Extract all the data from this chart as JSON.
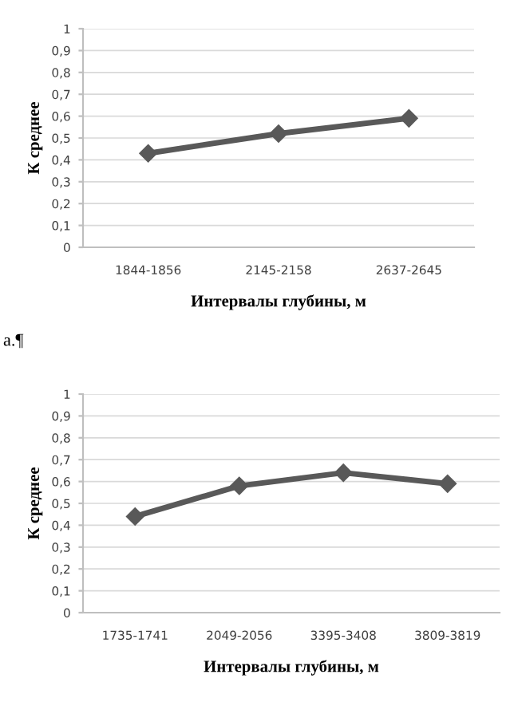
{
  "chart_data": [
    {
      "type": "line",
      "categories": [
        "1844-1856",
        "2145-2158",
        "2637-2645"
      ],
      "series": [
        {
          "color": "#595959",
          "values": [
            0.43,
            0.52,
            0.59
          ]
        }
      ],
      "xlabel": "Интервалы глубины, м",
      "ylabel": "К среднее",
      "ylim": [
        0,
        1
      ],
      "yticks": [
        0,
        {
          "value": 0.1,
          "label": "0,1"
        },
        {
          "value": 0.2,
          "label": "0,2"
        },
        {
          "value": 0.3,
          "label": "0,3"
        },
        {
          "value": 0.4,
          "label": "0,4"
        },
        {
          "value": 0.5,
          "label": "0,5"
        },
        {
          "value": 0.6,
          "label": "0,6"
        },
        {
          "value": 0.7,
          "label": "0,7"
        },
        {
          "value": 0.8,
          "label": "0,8"
        },
        {
          "value": 0.9,
          "label": "0,9"
        },
        1
      ],
      "grid": "y",
      "marker": "diamond",
      "line_style": "solid",
      "legend": false,
      "annotations": [
        "а.¶"
      ]
    },
    {
      "type": "line",
      "categories": [
        "1735-1741",
        "2049-2056",
        "3395-3408",
        "3809-3819"
      ],
      "series": [
        {
          "color": "#595959",
          "values": [
            0.44,
            0.58,
            0.64,
            0.59
          ]
        }
      ],
      "xlabel": "Интервалы глубины, м",
      "ylabel": "К среднее",
      "ylim": [
        0,
        1
      ],
      "yticks": [
        0,
        {
          "value": 0.1,
          "label": "0,1"
        },
        {
          "value": 0.2,
          "label": "0,2"
        },
        {
          "value": 0.3,
          "label": "0,3"
        },
        {
          "value": 0.4,
          "label": "0,4"
        },
        {
          "value": 0.5,
          "label": "0,5"
        },
        {
          "value": 0.6,
          "label": "0,6"
        },
        {
          "value": 0.7,
          "label": "0,7"
        },
        {
          "value": 0.8,
          "label": "0,8"
        },
        {
          "value": 0.9,
          "label": "0,9"
        },
        1
      ],
      "grid": "y",
      "marker": "diamond",
      "line_style": "solid",
      "legend": false
    }
  ]
}
